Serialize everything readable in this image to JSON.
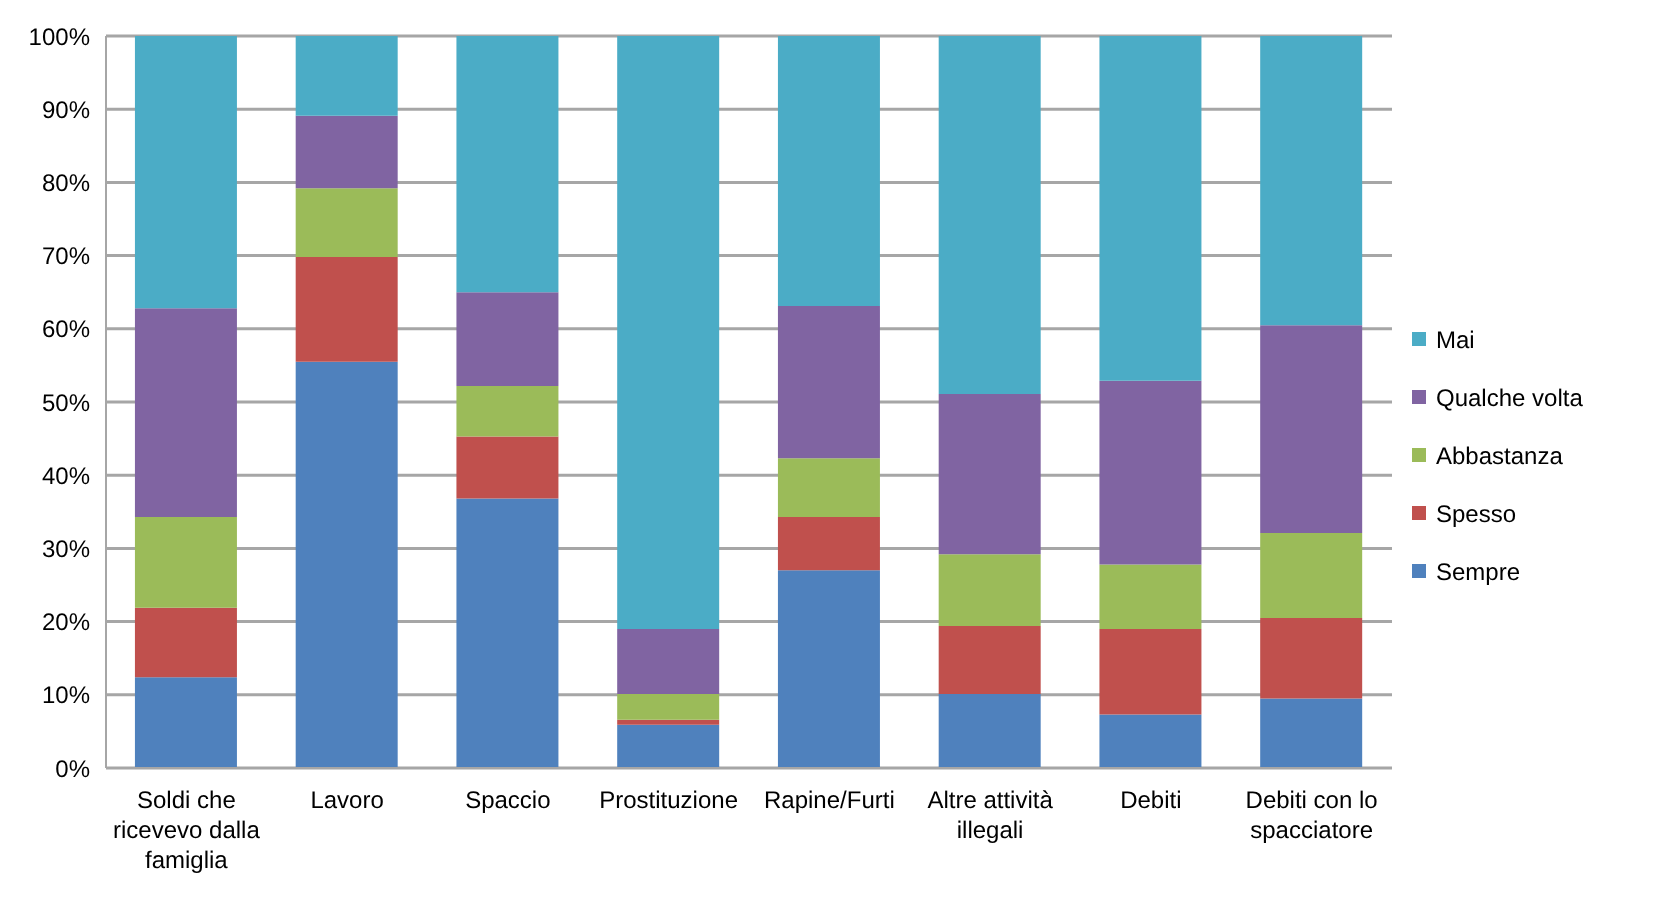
{
  "chart_data": {
    "type": "bar",
    "stacked": true,
    "categories": [
      "Soldi che ricevevo dalla famiglia",
      "Lavoro",
      "Spaccio",
      "Prostituzione",
      "Rapine/Furti",
      "Altre attività illegali",
      "Debiti",
      "Debiti con lo spacciatore"
    ],
    "series": [
      {
        "name": "Sempre",
        "color": "#4f81bd",
        "values": [
          12.4,
          55.5,
          36.8,
          5.9,
          27.0,
          10.1,
          7.3,
          9.5
        ]
      },
      {
        "name": "Spesso",
        "color": "#c0504d",
        "values": [
          9.5,
          14.3,
          8.5,
          0.7,
          7.3,
          9.3,
          11.7,
          11.0
        ]
      },
      {
        "name": "Abbastanza",
        "color": "#9bbb59",
        "values": [
          12.4,
          9.4,
          6.9,
          3.5,
          8.0,
          9.8,
          8.8,
          11.6
        ]
      },
      {
        "name": "Qualche volta",
        "color": "#8064a2",
        "values": [
          28.5,
          9.9,
          12.8,
          8.9,
          20.8,
          21.9,
          25.1,
          28.4
        ]
      },
      {
        "name": "Mai",
        "color": "#4bacc6",
        "values": [
          37.2,
          10.9,
          35.0,
          81.0,
          36.9,
          48.9,
          47.1,
          39.5
        ]
      }
    ],
    "ylim": [
      0,
      100
    ],
    "yticks": [
      {
        "value": 0,
        "label": "0%"
      },
      {
        "value": 10,
        "label": "10%"
      },
      {
        "value": 20,
        "label": "20%"
      },
      {
        "value": 30,
        "label": "30%"
      },
      {
        "value": 40,
        "label": "40%"
      },
      {
        "value": 50,
        "label": "50%"
      },
      {
        "value": 60,
        "label": "60%"
      },
      {
        "value": 70,
        "label": "70%"
      },
      {
        "value": 80,
        "label": "80%"
      },
      {
        "value": 90,
        "label": "90%"
      },
      {
        "value": 100,
        "label": "100%"
      }
    ],
    "grid": "y",
    "legend": "right"
  }
}
